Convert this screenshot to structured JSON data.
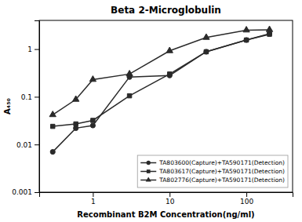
{
  "chart_data": {
    "type": "line",
    "title": "Beta 2-Microglobulin",
    "xlabel": "Recombinant B2M Concentration(ng/ml)",
    "ylabel": "A₄₅₀",
    "x": [
      0.3,
      0.6,
      1.0,
      3.0,
      10.0,
      30.0,
      100.0,
      200.0
    ],
    "series": [
      {
        "name": "TA803600(Capture)+TA590171(Detection)",
        "color": "#2a2a2a",
        "marker": "circle",
        "line_style": "solid",
        "values": [
          0.007,
          0.022,
          0.025,
          0.26,
          0.28,
          0.88,
          1.55,
          2.1
        ]
      },
      {
        "name": "TA803617(Capture)+TA590171(Detection)",
        "color": "#2a2a2a",
        "marker": "square",
        "line_style": "solid",
        "values": [
          0.024,
          0.027,
          0.032,
          0.105,
          0.3,
          0.88,
          1.55,
          2.05
        ]
      },
      {
        "name": "TA802776(Capture)+TA590171(Detection)",
        "color": "#2a2a2a",
        "marker": "triangle",
        "line_style": "solid",
        "values": [
          0.042,
          0.088,
          0.23,
          0.3,
          0.92,
          1.75,
          2.5,
          2.55
        ]
      }
    ],
    "xlim": [
      0.2,
      400
    ],
    "ylim": [
      0.001,
      4
    ],
    "xticks": [
      1,
      10,
      100
    ],
    "yticks": [
      0.001,
      0.01,
      0.1,
      1
    ],
    "log": true,
    "grid": false,
    "legend": "lower right"
  }
}
